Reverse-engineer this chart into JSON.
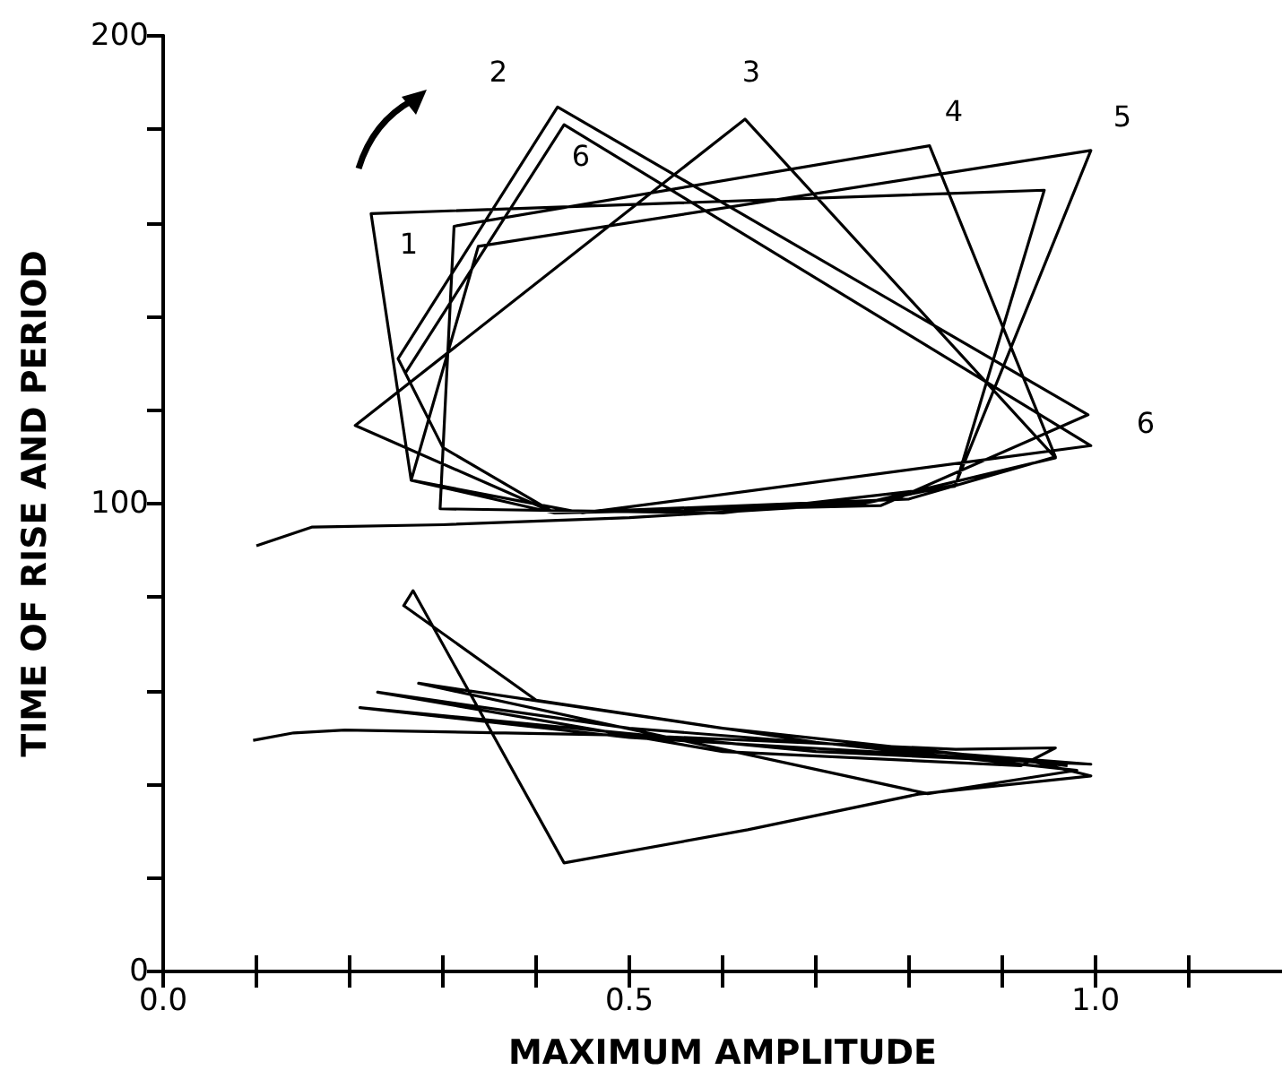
{
  "chart_data": {
    "type": "line",
    "xlabel": "MAXIMUM AMPLITUDE",
    "ylabel": "TIME OF RISE AND PERIOD",
    "marker": "none",
    "xlim": [
      0,
      1.2
    ],
    "xticks": [
      {
        "value": 0,
        "label": "0.0"
      },
      {
        "value": 0.1,
        "label": null
      },
      {
        "value": 0.2,
        "label": null
      },
      {
        "value": 0.3,
        "label": null
      },
      {
        "value": 0.4,
        "label": null
      },
      {
        "value": 0.5,
        "label": "0.5"
      },
      {
        "value": 0.6,
        "label": null
      },
      {
        "value": 0.7,
        "label": null
      },
      {
        "value": 0.8,
        "label": null
      },
      {
        "value": 0.9,
        "label": null
      },
      {
        "value": 1.0,
        "label": "1.0"
      },
      {
        "value": 1.1,
        "label": null
      }
    ],
    "ylim": [
      0,
      200
    ],
    "yticks": [
      0,
      {
        "value": 20,
        "label": null
      },
      {
        "value": 40,
        "label": null
      },
      {
        "value": 60,
        "label": null
      },
      {
        "value": 80,
        "label": null
      },
      100,
      {
        "value": 120,
        "label": null
      },
      {
        "value": 140,
        "label": null
      },
      {
        "value": 160,
        "label": null
      },
      {
        "value": 180,
        "label": null
      },
      200
    ],
    "series": [
      {
        "color": "#000000",
        "x": [
          0.1,
          0.16,
          0.3,
          0.5,
          0.75,
          0.85,
          0.945,
          0.223,
          0.266,
          0.42,
          0.77,
          0.992,
          0.423,
          0.252,
          0.3,
          0.42,
          0.75,
          0.957,
          0.624,
          0.206,
          0.42,
          0.8,
          0.957,
          0.822,
          0.312,
          0.297,
          0.6,
          0.849,
          0.995,
          0.338,
          0.266,
          0.45,
          0.995,
          0.43,
          0.26
        ],
        "values": [
          91,
          95,
          95.5,
          97,
          100,
          104,
          167,
          162,
          105,
          98,
          99.6,
          119,
          184.8,
          131,
          112,
          98,
          100,
          109.8,
          182.2,
          116.7,
          98,
          101,
          110,
          176.5,
          159.3,
          98.9,
          98,
          103.7,
          175.5,
          155,
          105,
          98,
          112.4,
          181,
          128
        ]
      },
      {
        "color": "#000000",
        "x": [
          0.0965,
          0.14,
          0.195,
          0.5,
          0.85,
          0.957,
          0.92,
          0.6,
          0.23,
          0.5,
          0.995,
          0.7,
          0.211,
          0.5,
          0.93,
          0.995,
          0.81,
          0.627,
          0.43,
          0.268,
          0.258,
          0.4,
          0.7,
          0.98,
          0.82,
          0.274,
          0.6,
          0.97
        ],
        "values": [
          49.4,
          51,
          51.6,
          50.5,
          47.5,
          47.8,
          44,
          47,
          59.7,
          52,
          44.3,
          47,
          56.4,
          50,
          45,
          41.8,
          37.9,
          30.3,
          23.2,
          81.4,
          78.2,
          58,
          49,
          43,
          38,
          61.6,
          52,
          44
        ]
      }
    ],
    "annotations": [
      "1",
      "2",
      "3",
      "4",
      "5",
      "6",
      "6"
    ]
  }
}
